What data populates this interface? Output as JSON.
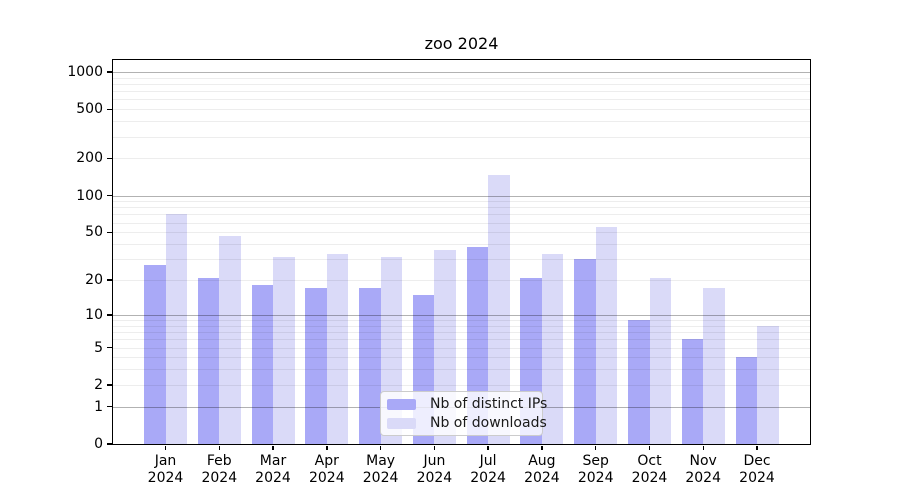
{
  "chart_data": {
    "type": "bar",
    "title": "zoo 2024",
    "categories": [
      "Jan",
      "Feb",
      "Mar",
      "Apr",
      "May",
      "Jun",
      "Jul",
      "Aug",
      "Sep",
      "Oct",
      "Nov",
      "Dec"
    ],
    "year": "2024",
    "series": [
      {
        "name": "Nb of distinct IPs",
        "color": "#a9a9f7",
        "values": [
          27,
          21,
          18,
          17,
          17,
          15,
          38,
          21,
          30,
          9,
          6,
          4
        ]
      },
      {
        "name": "Nb of downloads",
        "color": "#dadaf8",
        "values": [
          70,
          47,
          31,
          33,
          31,
          36,
          146,
          33,
          55,
          21,
          17,
          8
        ]
      }
    ],
    "xlabel": "",
    "ylabel": "",
    "y_scale": "log10(value+1)",
    "y_ticks": [
      0,
      1,
      2,
      5,
      10,
      20,
      50,
      100,
      200,
      500,
      1000
    ],
    "ylim": [
      0,
      1250
    ],
    "grid": "horizontal major and minor, drawn over bars",
    "legend_position": "inside bottom-center"
  }
}
